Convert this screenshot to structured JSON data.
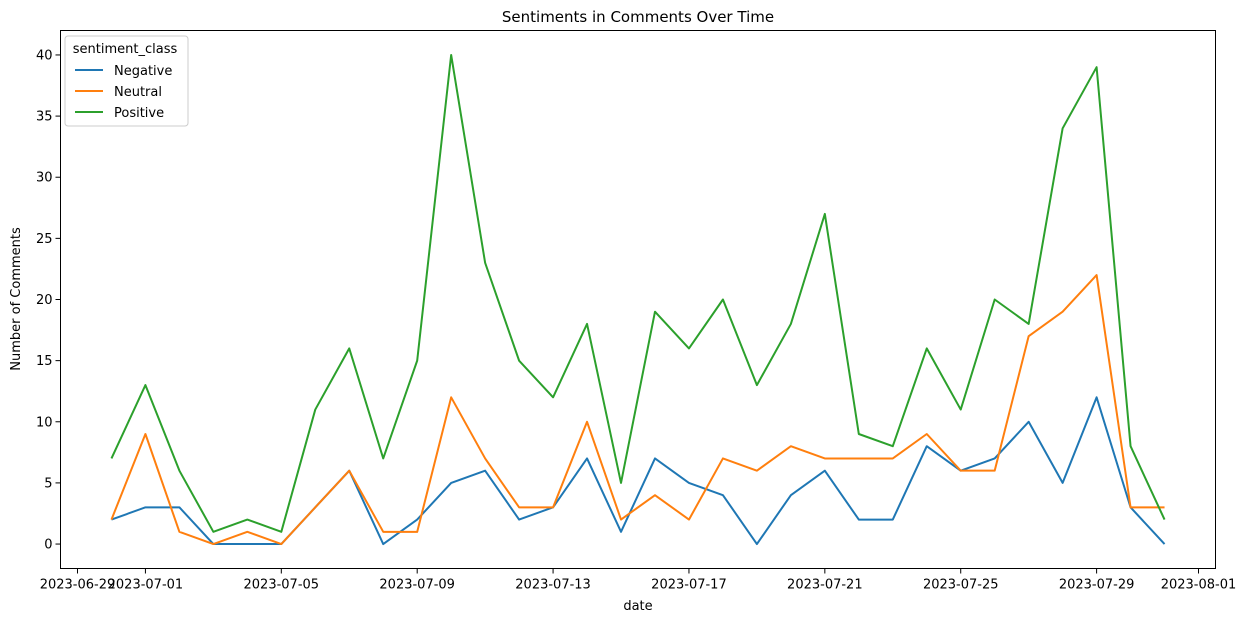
{
  "chart_data": {
    "type": "line",
    "title": "Sentiments in Comments Over Time",
    "xlabel": "date",
    "ylabel": "Number of Comments",
    "x": [
      "2023-06-30",
      "2023-07-01",
      "2023-07-02",
      "2023-07-03",
      "2023-07-04",
      "2023-07-05",
      "2023-07-06",
      "2023-07-07",
      "2023-07-08",
      "2023-07-09",
      "2023-07-10",
      "2023-07-11",
      "2023-07-12",
      "2023-07-13",
      "2023-07-14",
      "2023-07-15",
      "2023-07-16",
      "2023-07-17",
      "2023-07-18",
      "2023-07-19",
      "2023-07-20",
      "2023-07-21",
      "2023-07-22",
      "2023-07-23",
      "2023-07-24",
      "2023-07-25",
      "2023-07-26",
      "2023-07-27",
      "2023-07-28",
      "2023-07-29",
      "2023-07-30",
      "2023-07-31"
    ],
    "xlim": [
      "2023-06-28T12:00",
      "2023-08-01T12:00"
    ],
    "xticks": [
      "2023-06-29",
      "2023-07-01",
      "2023-07-05",
      "2023-07-09",
      "2023-07-13",
      "2023-07-17",
      "2023-07-21",
      "2023-07-25",
      "2023-07-29",
      "2023-08-01"
    ],
    "ylim": [
      -2,
      42
    ],
    "yticks": [
      0,
      5,
      10,
      15,
      20,
      25,
      30,
      35,
      40
    ],
    "grid": false,
    "legend": {
      "title": "sentiment_class",
      "placement": "top-left"
    },
    "series": [
      {
        "name": "Negative",
        "color": "#1f77b4",
        "values": [
          2,
          3,
          3,
          0,
          0,
          0,
          3,
          6,
          0,
          2,
          5,
          6,
          2,
          3,
          7,
          1,
          7,
          5,
          4,
          0,
          4,
          6,
          2,
          2,
          8,
          6,
          7,
          10,
          5,
          12,
          3,
          0
        ]
      },
      {
        "name": "Neutral",
        "color": "#ff7f0e",
        "values": [
          2,
          9,
          1,
          0,
          1,
          0,
          3,
          6,
          1,
          1,
          12,
          7,
          3,
          3,
          10,
          2,
          4,
          2,
          7,
          6,
          8,
          7,
          7,
          7,
          9,
          6,
          6,
          17,
          19,
          22,
          3,
          3
        ]
      },
      {
        "name": "Positive",
        "color": "#2ca02c",
        "values": [
          7,
          13,
          6,
          1,
          2,
          1,
          11,
          16,
          7,
          15,
          40,
          23,
          15,
          12,
          18,
          5,
          19,
          16,
          20,
          13,
          18,
          27,
          9,
          8,
          16,
          11,
          20,
          18,
          34,
          39,
          8,
          2
        ]
      }
    ]
  }
}
